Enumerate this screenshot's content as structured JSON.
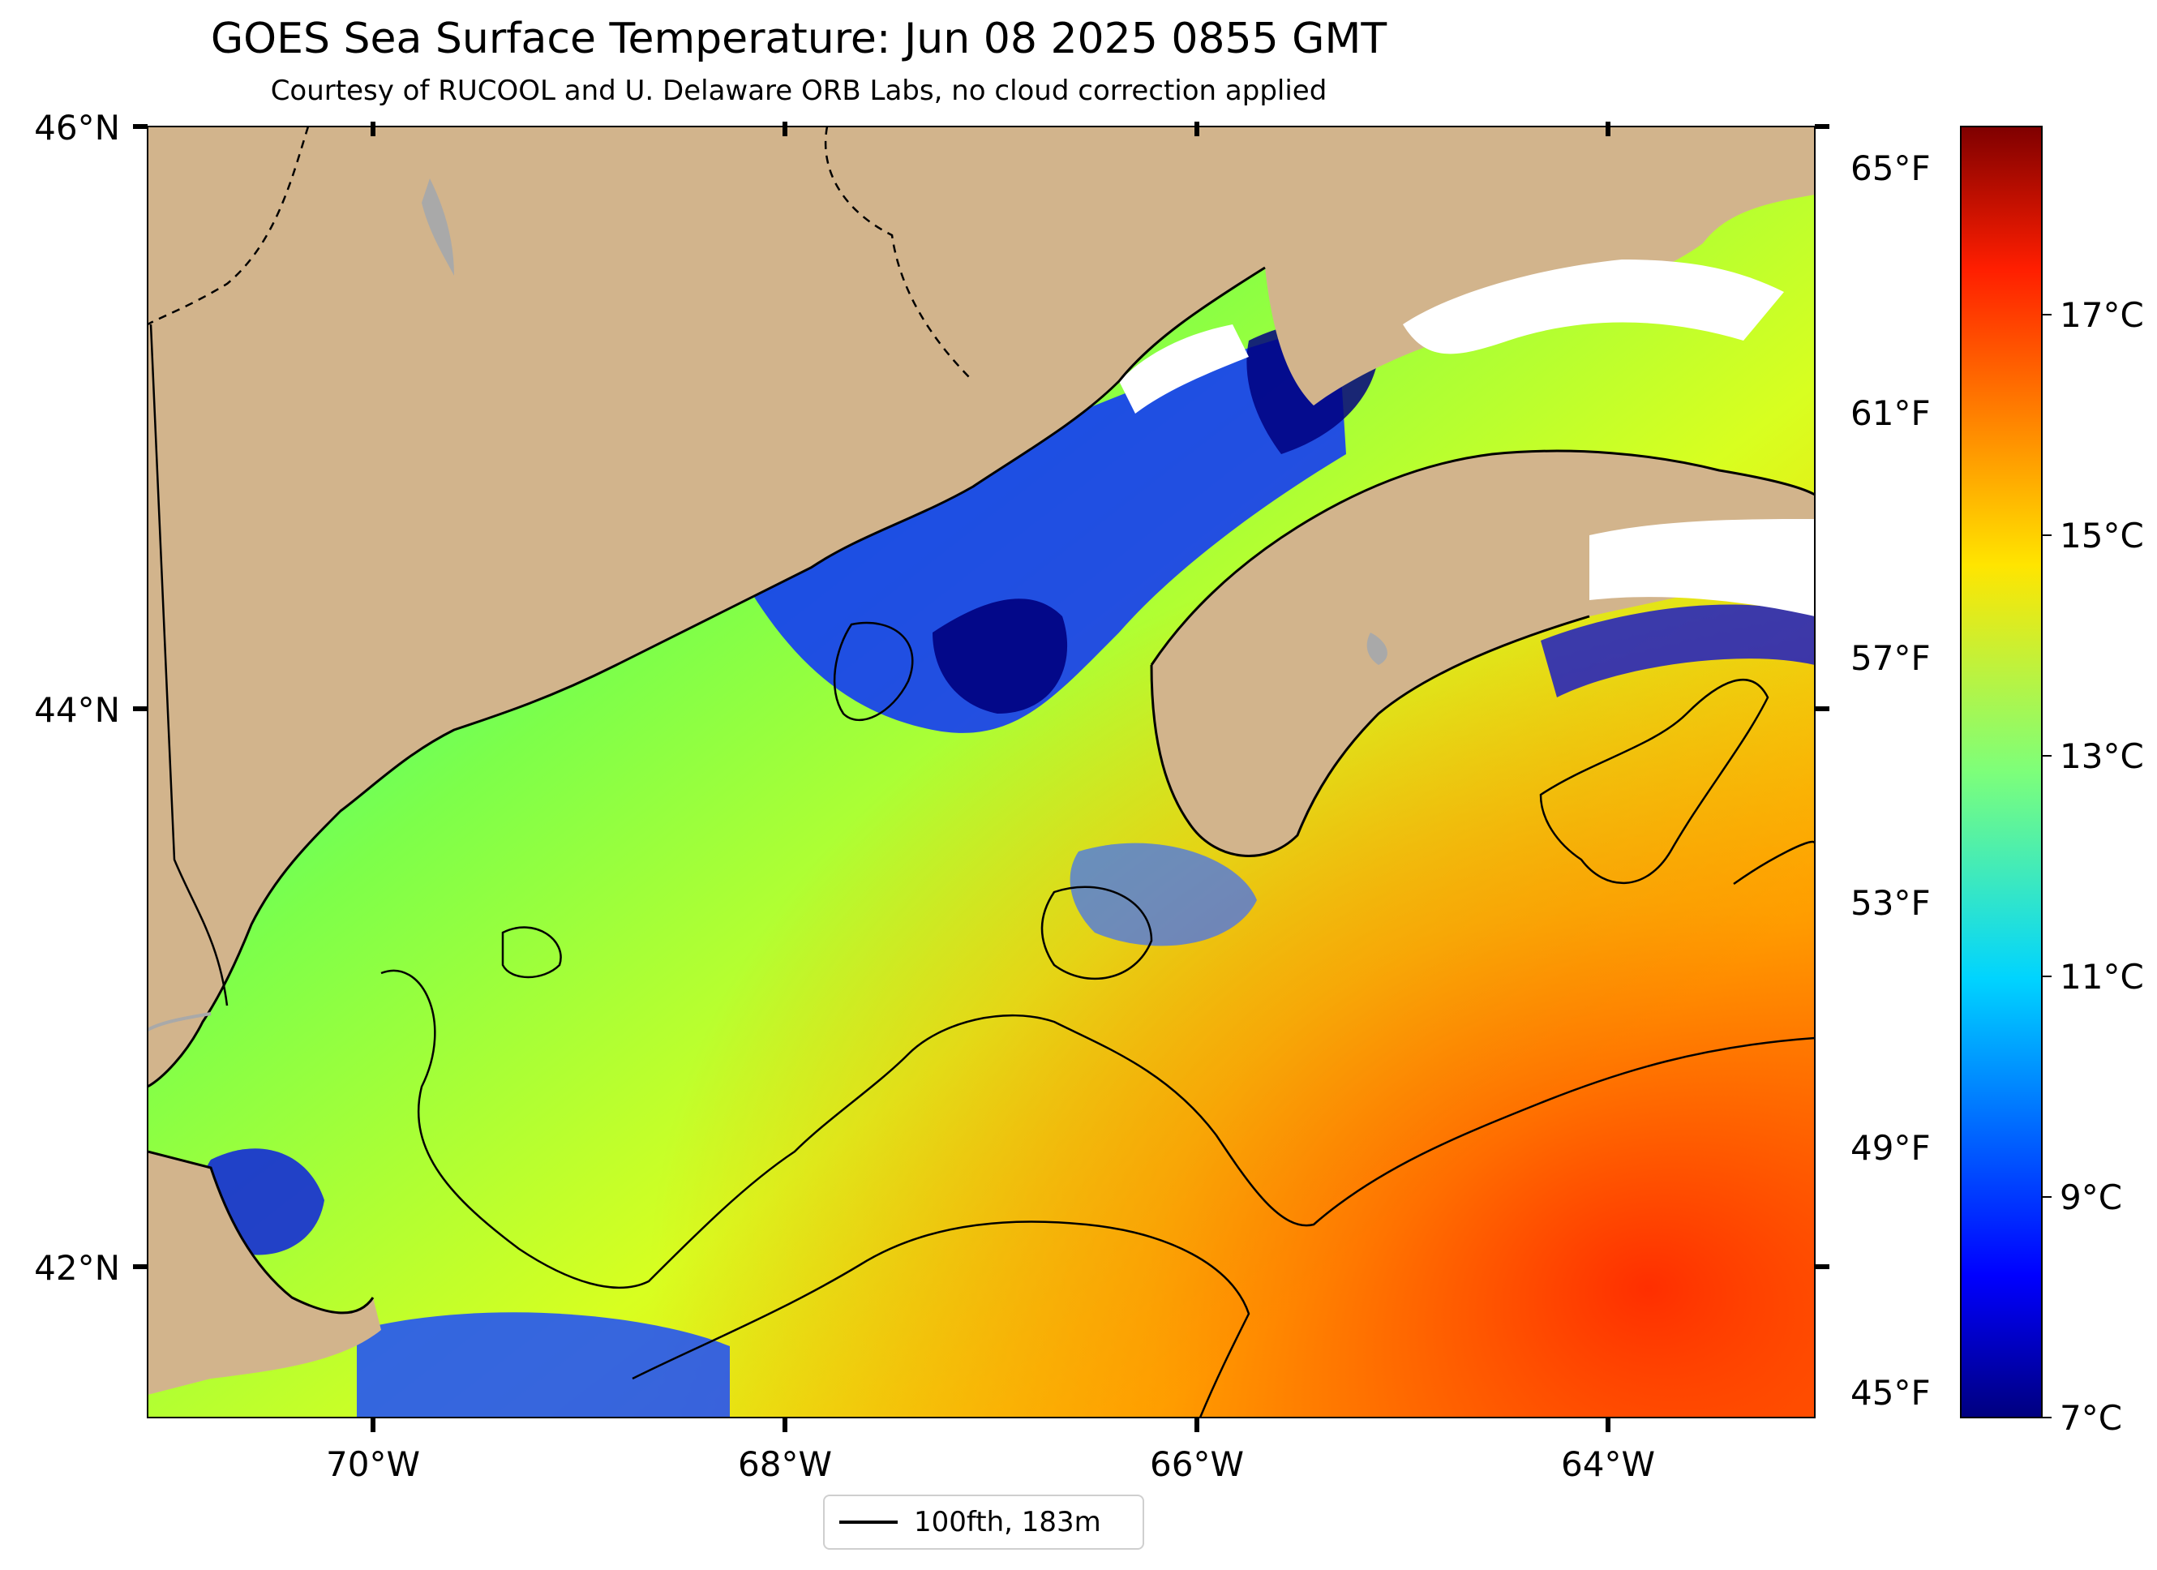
{
  "map": {
    "title": "GOES Sea Surface Temperature: Jun 08 2025 0855 GMT",
    "subtitle": "Courtesy of RUCOOL and U. Delaware ORB Labs, no cloud correction applied",
    "lon_labels": [
      "70°W",
      "68°W",
      "66°W",
      "64°W"
    ],
    "lat_labels": [
      "46°N",
      "44°N",
      "42°N"
    ],
    "legend_label": "100fth, 183m",
    "colors": {
      "land": "#d2b48c",
      "no_data": "#ffffff",
      "lakes_rivers": "#a9a9a9",
      "contour": "#000000"
    }
  },
  "colorbar": {
    "colormap": "jet",
    "celsius_range": [
      7,
      19
    ],
    "celsius_labels": [
      "17°C",
      "15°C",
      "13°C",
      "11°C",
      "9°C",
      "7°C"
    ],
    "fahrenheit_labels": [
      "65°F",
      "61°F",
      "57°F",
      "53°F",
      "49°F",
      "45°F"
    ]
  }
}
